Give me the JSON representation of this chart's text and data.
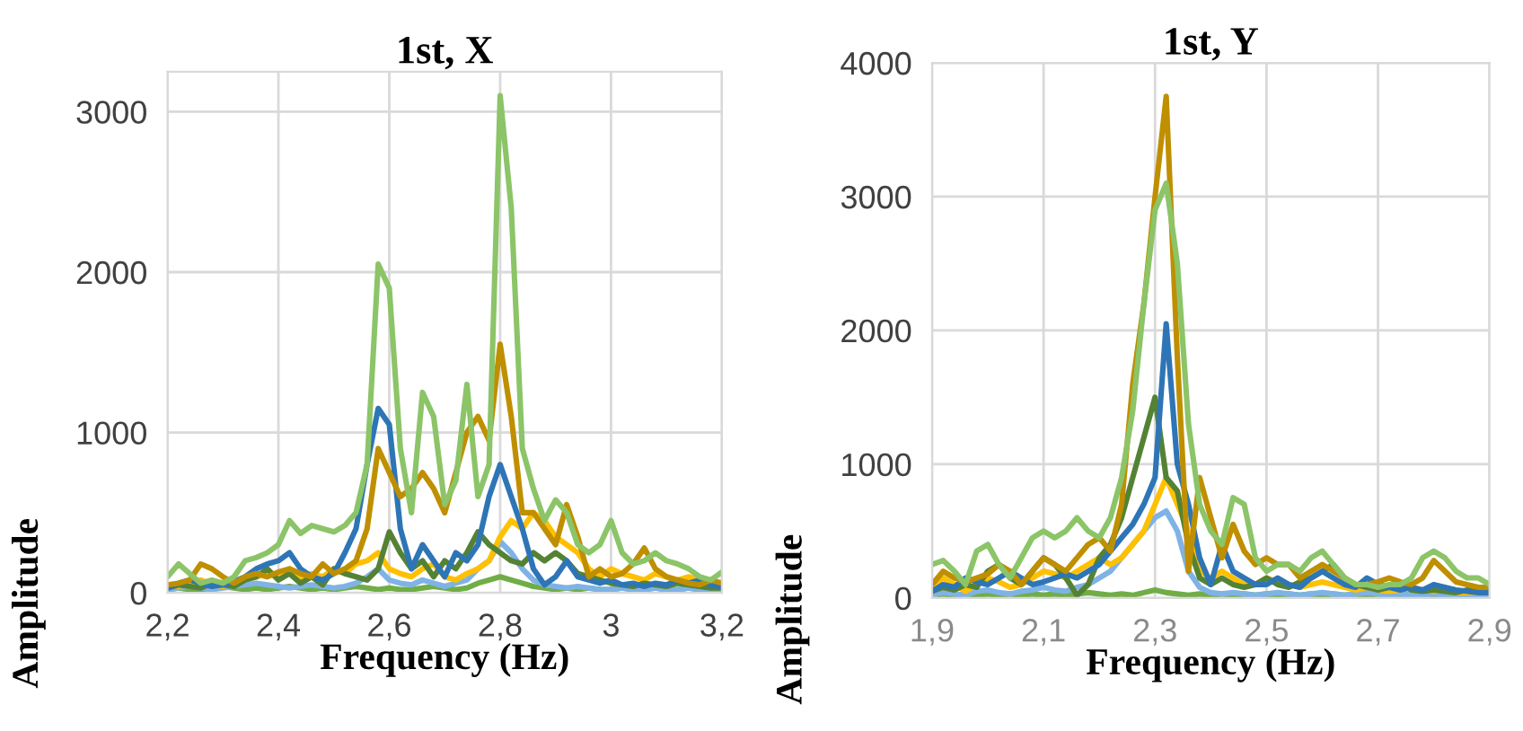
{
  "chart_data": [
    {
      "type": "line",
      "title": "1st, X",
      "xlabel": "Frequency (Hz)",
      "ylabel": "Amplitude",
      "grid": true,
      "xlim": [
        2.2,
        3.2
      ],
      "ylim": [
        0,
        3250
      ],
      "xticks": [
        {
          "value": 2.2,
          "label": "2,2"
        },
        {
          "value": 2.4,
          "label": "2,4"
        },
        {
          "value": 2.6,
          "label": "2,6"
        },
        {
          "value": 2.8,
          "label": "2,8"
        },
        3,
        {
          "value": 3.2,
          "label": "3,2"
        }
      ],
      "yticks": [
        0,
        1000,
        2000,
        3000
      ],
      "x": [
        2.2,
        2.22,
        2.24,
        2.26,
        2.28,
        2.3,
        2.32,
        2.34,
        2.36,
        2.38,
        2.4,
        2.42,
        2.44,
        2.46,
        2.48,
        2.5,
        2.52,
        2.54,
        2.56,
        2.58,
        2.6,
        2.62,
        2.64,
        2.66,
        2.68,
        2.7,
        2.72,
        2.74,
        2.76,
        2.78,
        2.8,
        2.82,
        2.84,
        2.86,
        2.88,
        2.9,
        2.92,
        2.94,
        2.96,
        2.98,
        3.0,
        3.02,
        3.04,
        3.06,
        3.08,
        3.1,
        3.12,
        3.14,
        3.16,
        3.18,
        3.2
      ],
      "series": [
        {
          "color": "#70ad47",
          "values": [
            20,
            30,
            20,
            20,
            30,
            40,
            30,
            20,
            30,
            20,
            30,
            40,
            30,
            20,
            30,
            20,
            30,
            40,
            30,
            20,
            30,
            20,
            20,
            30,
            40,
            30,
            20,
            30,
            60,
            80,
            100,
            80,
            60,
            40,
            30,
            20,
            30,
            20,
            30,
            20,
            20,
            30,
            20,
            20,
            30,
            20,
            20,
            30,
            20,
            20,
            20
          ]
        },
        {
          "color": "#7fb2e5",
          "values": [
            20,
            30,
            40,
            30,
            20,
            30,
            40,
            50,
            60,
            50,
            40,
            30,
            40,
            50,
            40,
            30,
            40,
            60,
            100,
            150,
            80,
            60,
            50,
            80,
            60,
            40,
            60,
            80,
            150,
            200,
            320,
            250,
            150,
            80,
            50,
            40,
            30,
            40,
            30,
            20,
            20,
            30,
            20,
            20,
            30,
            20,
            20,
            30,
            20,
            20,
            20
          ]
        },
        {
          "color": "#ffc000",
          "values": [
            50,
            40,
            60,
            80,
            50,
            40,
            60,
            80,
            100,
            120,
            100,
            150,
            80,
            120,
            100,
            150,
            120,
            180,
            200,
            250,
            150,
            120,
            100,
            150,
            180,
            100,
            80,
            120,
            150,
            200,
            350,
            450,
            400,
            500,
            450,
            350,
            300,
            250,
            150,
            100,
            150,
            120,
            100,
            80,
            120,
            100,
            80,
            100,
            80,
            60,
            60
          ]
        },
        {
          "color": "#548235",
          "values": [
            30,
            50,
            40,
            30,
            60,
            50,
            40,
            80,
            100,
            150,
            80,
            120,
            60,
            100,
            50,
            150,
            120,
            100,
            80,
            150,
            380,
            250,
            150,
            200,
            100,
            200,
            150,
            250,
            380,
            300,
            250,
            200,
            180,
            250,
            200,
            250,
            200,
            120,
            100,
            80,
            60,
            50,
            40,
            60,
            50,
            40,
            60,
            50,
            40,
            30,
            30
          ]
        },
        {
          "color": "#2e75b6",
          "values": [
            30,
            60,
            80,
            60,
            40,
            50,
            70,
            100,
            150,
            180,
            200,
            250,
            150,
            100,
            80,
            120,
            250,
            400,
            800,
            1150,
            1050,
            400,
            150,
            300,
            200,
            100,
            250,
            200,
            300,
            600,
            800,
            600,
            400,
            150,
            50,
            100,
            200,
            100,
            80,
            60,
            80,
            50,
            60,
            40,
            60,
            50,
            80,
            60,
            80,
            50,
            40
          ]
        },
        {
          "color": "#bf8f00",
          "values": [
            50,
            60,
            80,
            180,
            150,
            100,
            60,
            100,
            120,
            100,
            130,
            150,
            120,
            100,
            180,
            120,
            150,
            200,
            400,
            900,
            750,
            600,
            650,
            750,
            650,
            500,
            750,
            1000,
            1100,
            950,
            1550,
            1100,
            500,
            500,
            400,
            300,
            550,
            350,
            100,
            150,
            100,
            120,
            180,
            280,
            150,
            100,
            80,
            60,
            50,
            80,
            60
          ]
        },
        {
          "color": "#8cc468",
          "values": [
            100,
            180,
            120,
            60,
            80,
            60,
            100,
            200,
            220,
            250,
            300,
            450,
            370,
            420,
            400,
            380,
            420,
            500,
            800,
            2050,
            1900,
            900,
            500,
            1250,
            1100,
            550,
            700,
            1300,
            600,
            800,
            3100,
            2400,
            900,
            650,
            450,
            580,
            500,
            300,
            250,
            300,
            450,
            250,
            180,
            200,
            250,
            200,
            180,
            150,
            100,
            80,
            130
          ]
        }
      ]
    },
    {
      "type": "line",
      "title": "1st, Y",
      "xlabel": "Frequency (Hz)",
      "ylabel": "Amplitude",
      "grid": true,
      "xlim": [
        1.9,
        2.9
      ],
      "ylim": [
        0,
        4000
      ],
      "xticks": [
        {
          "value": 1.9,
          "label": "1,9"
        },
        {
          "value": 2.1,
          "label": "2,1"
        },
        {
          "value": 2.3,
          "label": "2,3"
        },
        {
          "value": 2.5,
          "label": "2,5"
        },
        {
          "value": 2.7,
          "label": "2,7"
        },
        {
          "value": 2.9,
          "label": "2,9"
        }
      ],
      "yticks": [
        0,
        1000,
        2000,
        3000,
        4000
      ],
      "x": [
        1.9,
        1.92,
        1.94,
        1.96,
        1.98,
        2.0,
        2.02,
        2.04,
        2.06,
        2.08,
        2.1,
        2.12,
        2.14,
        2.16,
        2.18,
        2.2,
        2.22,
        2.24,
        2.26,
        2.28,
        2.3,
        2.32,
        2.34,
        2.36,
        2.38,
        2.4,
        2.42,
        2.44,
        2.46,
        2.48,
        2.5,
        2.52,
        2.54,
        2.56,
        2.58,
        2.6,
        2.62,
        2.64,
        2.66,
        2.68,
        2.7,
        2.72,
        2.74,
        2.76,
        2.78,
        2.8,
        2.82,
        2.84,
        2.86,
        2.88,
        2.9
      ],
      "series": [
        {
          "color": "#70ad47",
          "values": [
            20,
            30,
            20,
            30,
            20,
            30,
            20,
            30,
            20,
            30,
            20,
            30,
            20,
            30,
            40,
            30,
            20,
            30,
            20,
            40,
            60,
            40,
            30,
            20,
            30,
            20,
            30,
            20,
            30,
            20,
            30,
            20,
            30,
            20,
            30,
            20,
            30,
            20,
            30,
            20,
            30,
            20,
            30,
            20,
            30,
            20,
            30,
            20,
            30,
            20,
            20
          ]
        },
        {
          "color": "#7fb2e5",
          "values": [
            20,
            40,
            30,
            20,
            50,
            60,
            40,
            30,
            50,
            60,
            80,
            60,
            50,
            80,
            100,
            150,
            200,
            300,
            400,
            500,
            600,
            650,
            500,
            200,
            80,
            40,
            30,
            40,
            30,
            20,
            30,
            40,
            30,
            20,
            30,
            40,
            30,
            20,
            30,
            40,
            30,
            20,
            30,
            20,
            20,
            30,
            20,
            20,
            30,
            20,
            20
          ]
        },
        {
          "color": "#ffc000",
          "values": [
            80,
            150,
            100,
            50,
            100,
            150,
            120,
            80,
            100,
            150,
            200,
            180,
            150,
            200,
            250,
            300,
            250,
            300,
            400,
            500,
            700,
            900,
            700,
            500,
            200,
            150,
            200,
            150,
            100,
            100,
            150,
            120,
            100,
            80,
            100,
            120,
            100,
            80,
            60,
            80,
            60,
            50,
            60,
            80,
            60,
            50,
            60,
            40,
            40,
            40,
            40
          ]
        },
        {
          "color": "#548235",
          "values": [
            50,
            80,
            60,
            100,
            80,
            200,
            250,
            150,
            100,
            200,
            300,
            250,
            150,
            20,
            100,
            300,
            400,
            600,
            900,
            1200,
            1500,
            900,
            800,
            400,
            150,
            100,
            150,
            100,
            80,
            100,
            150,
            100,
            80,
            120,
            150,
            200,
            250,
            150,
            100,
            80,
            60,
            80,
            100,
            60,
            50,
            60,
            50,
            40,
            60,
            50,
            40
          ]
        },
        {
          "color": "#2e75b6",
          "values": [
            50,
            100,
            80,
            150,
            120,
            100,
            150,
            200,
            150,
            100,
            120,
            150,
            180,
            150,
            200,
            250,
            350,
            450,
            550,
            700,
            900,
            2050,
            1000,
            700,
            300,
            100,
            400,
            200,
            150,
            100,
            100,
            150,
            100,
            80,
            150,
            200,
            150,
            100,
            80,
            150,
            100,
            80,
            60,
            80,
            60,
            100,
            80,
            60,
            50,
            40,
            40
          ]
        },
        {
          "color": "#bf8f00",
          "values": [
            100,
            200,
            150,
            120,
            150,
            180,
            250,
            200,
            100,
            200,
            300,
            250,
            200,
            300,
            400,
            450,
            350,
            700,
            1600,
            2200,
            3000,
            3750,
            1800,
            200,
            900,
            600,
            300,
            550,
            350,
            250,
            300,
            250,
            250,
            150,
            200,
            250,
            200,
            150,
            100,
            100,
            120,
            150,
            120,
            100,
            150,
            280,
            200,
            120,
            100,
            80,
            80
          ]
        },
        {
          "color": "#8cc468",
          "values": [
            250,
            280,
            200,
            100,
            350,
            400,
            250,
            150,
            300,
            450,
            500,
            450,
            500,
            600,
            500,
            450,
            600,
            900,
            1400,
            2200,
            2900,
            3100,
            2500,
            1300,
            700,
            500,
            400,
            750,
            700,
            300,
            200,
            250,
            250,
            200,
            300,
            350,
            250,
            150,
            100,
            100,
            80,
            100,
            100,
            150,
            300,
            350,
            300,
            200,
            150,
            150,
            100
          ]
        }
      ]
    }
  ]
}
